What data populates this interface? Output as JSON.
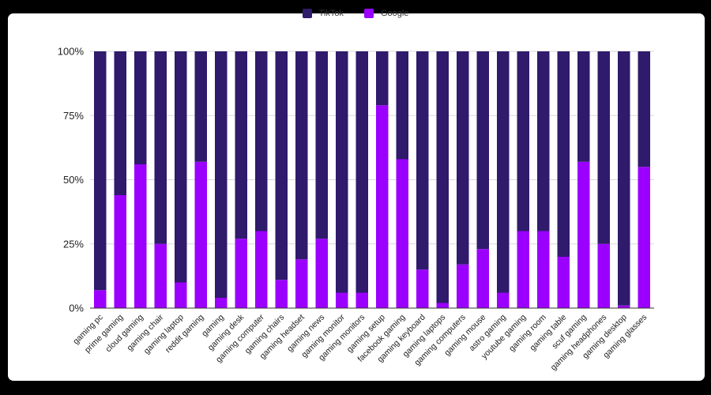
{
  "chart_data": {
    "type": "bar",
    "stacked": true,
    "percent": true,
    "categories": [
      "gaming pc",
      "prime gaming",
      "cloud gaming",
      "gaming chair",
      "gaming laptop",
      "reddit gaming",
      "gaming",
      "gaming desk",
      "gaming computer",
      "gaming chairs",
      "gaming headset",
      "gaming news",
      "gaming monitor",
      "gaming monitors",
      "gaming setup",
      "facebook gaming",
      "gaming keyboard",
      "gaming laptops",
      "gaming computers",
      "gaming mouse",
      "astro gaming",
      "youtube gaming",
      "gaming room",
      "gaming table",
      "scuf gaming",
      "gaming headphones",
      "gaming desktop",
      "gaming glasses"
    ],
    "series": [
      {
        "name": "TikTok",
        "color": "#2f1a6b",
        "values": [
          93,
          56,
          44,
          75,
          90,
          43,
          96,
          73,
          70,
          89,
          81,
          73,
          94,
          94,
          21,
          42,
          85,
          98,
          83,
          77,
          94,
          70,
          70,
          80,
          43,
          75,
          99,
          45
        ]
      },
      {
        "name": "Google",
        "color": "#9b00ff",
        "values": [
          7,
          44,
          56,
          25,
          10,
          57,
          4,
          27,
          30,
          11,
          19,
          27,
          6,
          6,
          79,
          58,
          15,
          2,
          17,
          23,
          6,
          30,
          30,
          20,
          57,
          25,
          1,
          55
        ]
      }
    ],
    "ylim": [
      0,
      100
    ],
    "yticks": [
      "0%",
      "25%",
      "50%",
      "75%",
      "100%"
    ],
    "legend_position": "top-center",
    "grid": true
  },
  "colors": {
    "tiktok": "#2f1a6b",
    "google": "#9b00ff",
    "grid": "#d9d9d9",
    "axis": "#333333"
  }
}
